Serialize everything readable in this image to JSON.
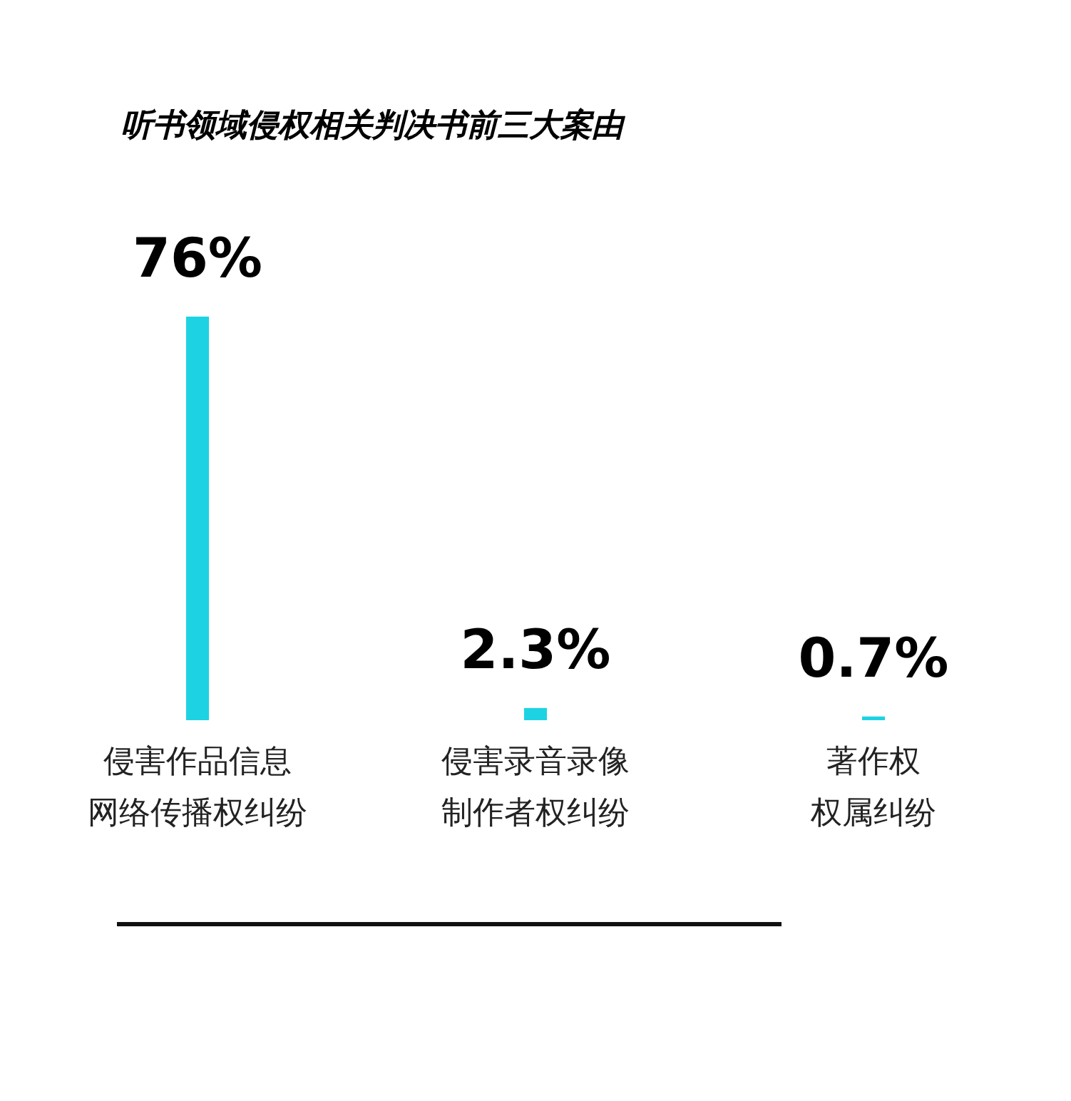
{
  "chart_data": {
    "type": "bar",
    "title": "听书领域侵权相关判决书前三大案由",
    "categories": [
      "侵害作品信息网络传播权纠纷",
      "侵害录音录像制作者权纠纷",
      "著作权权属纠纷"
    ],
    "values": [
      76,
      2.3,
      0.7
    ],
    "value_labels": [
      "76%",
      "2.3%",
      "0.7%"
    ],
    "color": "#1dd3e3"
  }
}
